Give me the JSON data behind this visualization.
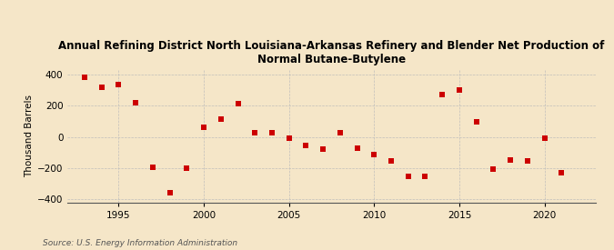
{
  "title": "Annual Refining District North Louisiana-Arkansas Refinery and Blender Net Production of\nNormal Butane-Butylene",
  "ylabel": "Thousand Barrels",
  "source": "Source: U.S. Energy Information Administration",
  "background_color": "#f5e6c8",
  "plot_bg_color": "#f5e6c8",
  "x_data": [
    1993,
    1994,
    1995,
    1996,
    1997,
    1998,
    1999,
    2000,
    2001,
    2002,
    2003,
    2004,
    2005,
    2006,
    2007,
    2008,
    2009,
    2010,
    2011,
    2012,
    2013,
    2014,
    2015,
    2016,
    2017,
    2018,
    2019,
    2020,
    2021
  ],
  "y_data": [
    385,
    320,
    335,
    220,
    -195,
    -360,
    -200,
    65,
    115,
    215,
    30,
    25,
    -5,
    -55,
    -80,
    30,
    -70,
    -110,
    -155,
    -250,
    -250,
    270,
    300,
    95,
    -205,
    -150,
    -155,
    -5,
    -230
  ],
  "marker_color": "#cc0000",
  "marker_size": 25,
  "xlim": [
    1992,
    2023
  ],
  "ylim": [
    -420,
    430
  ],
  "yticks": [
    -400,
    -200,
    0,
    200,
    400
  ],
  "xticks": [
    1995,
    2000,
    2005,
    2010,
    2015,
    2020
  ],
  "grid_color": "#bbbbbb",
  "title_fontsize": 8.5,
  "label_fontsize": 7.5,
  "tick_fontsize": 7.5,
  "source_fontsize": 6.5
}
